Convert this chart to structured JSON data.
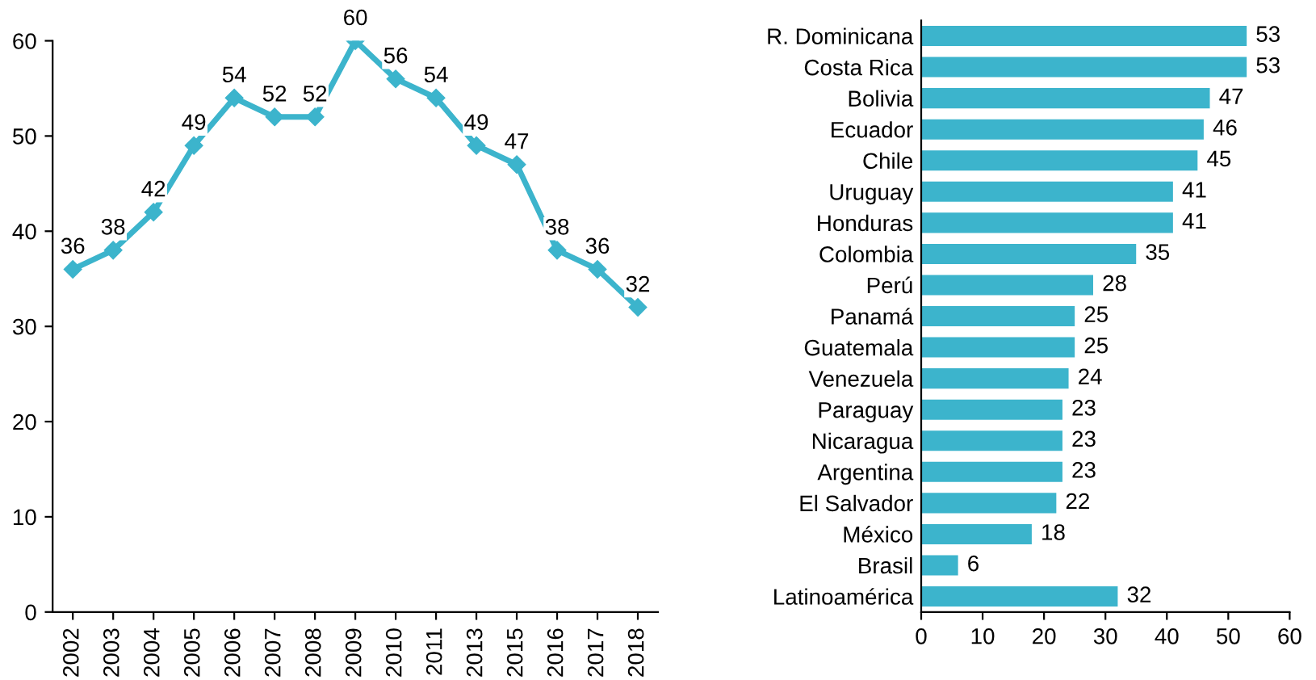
{
  "chart_data": [
    {
      "type": "line",
      "categories": [
        "2002",
        "2003",
        "2004",
        "2005",
        "2006",
        "2007",
        "2008",
        "2009",
        "2010",
        "2011",
        "2013",
        "2015",
        "2016",
        "2017",
        "2018"
      ],
      "values": [
        36,
        38,
        42,
        49,
        54,
        52,
        52,
        60,
        56,
        54,
        49,
        47,
        38,
        36,
        32
      ],
      "color": "#3cb4cc",
      "ylim": [
        0,
        60
      ],
      "yticks": [
        0,
        10,
        20,
        30,
        40,
        50,
        60
      ],
      "data_labels": true,
      "marker": "diamond",
      "line_style": "solid",
      "grid": false,
      "legend": false
    },
    {
      "type": "bar",
      "orientation": "horizontal",
      "categories": [
        "R. Dominicana",
        "Costa Rica",
        "Bolivia",
        "Ecuador",
        "Chile",
        "Uruguay",
        "Honduras",
        "Colombia",
        "Perú",
        "Panamá",
        "Guatemala",
        "Venezuela",
        "Paraguay",
        "Nicaragua",
        "Argentina",
        "El Salvador",
        "México",
        "Brasil",
        "Latinoamérica"
      ],
      "values": [
        53,
        53,
        47,
        46,
        45,
        41,
        41,
        35,
        28,
        25,
        25,
        24,
        23,
        23,
        23,
        22,
        18,
        6,
        32
      ],
      "color": "#3cb4cc",
      "xlim": [
        0,
        60
      ],
      "xticks": [
        0,
        10,
        20,
        30,
        40,
        50,
        60
      ],
      "data_labels": true,
      "grid": false,
      "legend": false
    }
  ]
}
